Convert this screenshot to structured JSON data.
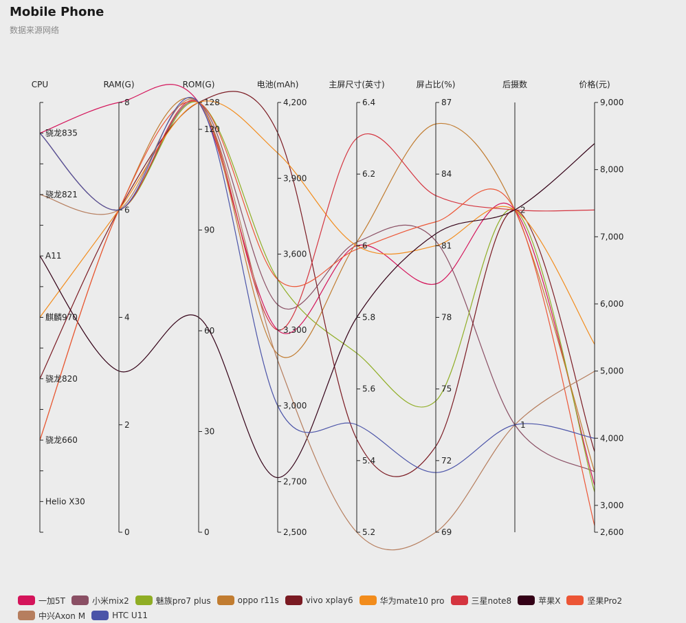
{
  "title": "Mobile Phone",
  "subtitle": "数据来源网络",
  "chart_data": {
    "type": "parallel",
    "title": "Mobile Phone",
    "subtitle": "数据来源网络",
    "axes": [
      {
        "name": "CPU",
        "type": "category",
        "categories": [
          "骁龙835",
          "骁龙821",
          "A11",
          "麒麟970",
          "骁龙820",
          "骁龙660",
          "Helio X30"
        ]
      },
      {
        "name": "RAM(G)",
        "type": "value",
        "min": 0,
        "max": 8,
        "ticks": [
          0,
          2,
          4,
          6,
          8
        ]
      },
      {
        "name": "ROM(G)",
        "type": "value",
        "min": 0,
        "max": 128,
        "ticks": [
          0,
          30,
          60,
          90,
          120,
          128
        ]
      },
      {
        "name": "电池(mAh)",
        "type": "value",
        "min": 2500,
        "max": 4200,
        "ticks": [
          2500,
          2700,
          3000,
          3300,
          3600,
          3900,
          4200
        ],
        "tick_labels": [
          "2,500",
          "2,700",
          "3,000",
          "3,300",
          "3,600",
          "3,900",
          "4,200"
        ]
      },
      {
        "name": "主屏尺寸(英寸)",
        "type": "value",
        "min": 5.2,
        "max": 6.4,
        "ticks": [
          5.2,
          5.4,
          5.6,
          5.8,
          6,
          6.2,
          6.4
        ],
        "tick_labels": [
          "5.2",
          "5.4",
          "5.6",
          "5.8",
          "6",
          "6.2",
          "6.4"
        ]
      },
      {
        "name": "屏占比(%)",
        "type": "value",
        "min": 69,
        "max": 87,
        "ticks": [
          69,
          72,
          75,
          78,
          81,
          84,
          87
        ]
      },
      {
        "name": "后摄数",
        "type": "category",
        "categories": [
          "2",
          "1"
        ]
      },
      {
        "name": "价格(元)",
        "type": "value",
        "min": 2600,
        "max": 9000,
        "ticks": [
          2600,
          3000,
          4000,
          5000,
          6000,
          7000,
          8000,
          9000
        ],
        "tick_labels": [
          "2,600",
          "3,000",
          "4,000",
          "5,000",
          "6,000",
          "7,000",
          "8,000",
          "9,000"
        ]
      }
    ],
    "series": [
      {
        "name": "一加5T",
        "color": "#d4145a",
        "values": [
          "骁龙835",
          8,
          128,
          3300,
          6,
          79.4,
          "2",
          3299
        ]
      },
      {
        "name": "小米mix2",
        "color": "#8a4f64",
        "values": [
          "骁龙835",
          6,
          128,
          3400,
          6.01,
          81.2,
          "1",
          3499
        ]
      },
      {
        "name": "魅族pro7 plus",
        "color": "#8fad24",
        "values": [
          "骁龙835",
          6,
          128,
          3500,
          5.7,
          74.5,
          "2",
          3199
        ]
      },
      {
        "name": "oppo r11s",
        "color": "#c17c30",
        "values": [
          "骁龙660",
          6,
          128,
          3205,
          6.01,
          86.1,
          "2",
          3499
        ]
      },
      {
        "name": "vivo xplay6",
        "color": "#7a1a22",
        "values": [
          "骁龙820",
          6,
          128,
          4080,
          5.46,
          72.6,
          "2",
          3800
        ]
      },
      {
        "name": "华为mate10 pro",
        "color": "#f28c1c",
        "values": [
          "麒麟970",
          6,
          128,
          4000,
          6,
          81,
          "2",
          5399
        ]
      },
      {
        "name": "三星note8",
        "color": "#d4343f",
        "values": [
          "骁龙835",
          6,
          128,
          3300,
          6.3,
          83.1,
          "2",
          7399
        ]
      },
      {
        "name": "苹果X",
        "color": "#330016",
        "values": [
          "A11",
          3,
          64,
          2716,
          5.8,
          81.5,
          "2",
          8388
        ]
      },
      {
        "name": "坚果Pro2",
        "color": "#ec5535",
        "values": [
          "骁龙660",
          6,
          128,
          3500,
          5.99,
          82,
          "2",
          2699
        ]
      },
      {
        "name": "中兴Axon M",
        "color": "#b67e5e",
        "values": [
          "骁龙821",
          6,
          128,
          3180,
          5.2,
          69,
          "1",
          4999
        ]
      },
      {
        "name": "HTC U11",
        "color": "#4b54a8",
        "values": [
          "骁龙835",
          6,
          128,
          3000,
          5.5,
          71.5,
          "1",
          3999
        ]
      }
    ],
    "grid": false,
    "legend": "bottom"
  }
}
